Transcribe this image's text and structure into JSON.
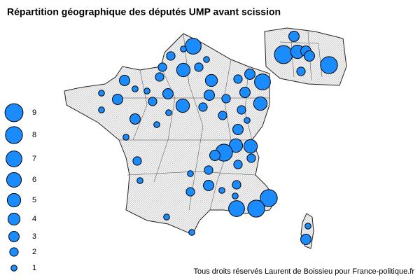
{
  "title": "Répartition géographique des députés UMP avant scission",
  "credit": "Tous droits réservés Laurent de Boissieu pour France-politique.fr",
  "legend": [
    9,
    8,
    7,
    6,
    5,
    4,
    3,
    2,
    1
  ],
  "bubbles": [
    3,
    9,
    5,
    3,
    3,
    2,
    8,
    7,
    1,
    1,
    2,
    5,
    2,
    2,
    3,
    7,
    3,
    2,
    4,
    2,
    1,
    1,
    1,
    3,
    3,
    2,
    3,
    3,
    2,
    5,
    1,
    5,
    1,
    2,
    3,
    2,
    2,
    1,
    1,
    3,
    1,
    5,
    5,
    8,
    3,
    2,
    2,
    2,
    2,
    1,
    2,
    3,
    1,
    2,
    1,
    8,
    7,
    8,
    1,
    1,
    1,
    1,
    3
  ]
}
